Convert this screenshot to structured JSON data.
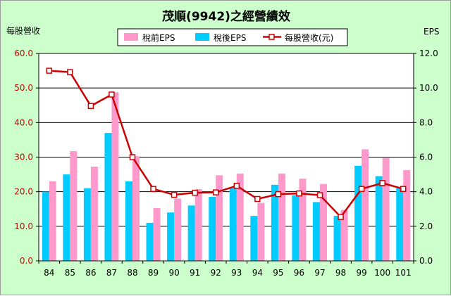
{
  "chart_data": {
    "type": "bar+line",
    "title": "茂順(9942)之經營績效",
    "ylabel_left": "每股營收",
    "ylabel_right": "EPS",
    "categories": [
      "84",
      "85",
      "86",
      "87",
      "88",
      "89",
      "90",
      "91",
      "92",
      "93",
      "94",
      "95",
      "96",
      "97",
      "98",
      "99",
      "100",
      "101"
    ],
    "ylim_left": [
      0,
      60
    ],
    "yticks_left": [
      "0.0",
      "10.0",
      "20.0",
      "30.0",
      "40.0",
      "50.0",
      "60.0"
    ],
    "ylim_right": [
      0,
      12
    ],
    "yticks_right": [
      "0.0",
      "2.0",
      "4.0",
      "6.0",
      "8.0",
      "10.0",
      "12.0"
    ],
    "grid": true,
    "legend_position": "top-center",
    "series": [
      {
        "name": "稅前EPS",
        "kind": "bar",
        "axis": "right",
        "color": "#ff99cc",
        "values": [
          4.6,
          6.35,
          5.45,
          9.75,
          6.05,
          3.05,
          3.6,
          4.15,
          4.95,
          5.05,
          3.35,
          5.05,
          4.75,
          4.45,
          2.95,
          6.45,
          5.95,
          5.25
        ]
      },
      {
        "name": "稅後EPS",
        "kind": "bar",
        "axis": "right",
        "color": "#00ccff",
        "values": [
          4.0,
          5.0,
          4.2,
          7.4,
          4.6,
          2.2,
          2.8,
          3.2,
          3.7,
          4.2,
          2.6,
          4.4,
          3.8,
          3.4,
          2.6,
          5.5,
          4.9,
          4.2
        ]
      },
      {
        "name": "每股營收(元)",
        "kind": "line",
        "axis": "left",
        "color": "#cc0000",
        "marker_fill": "#ffffff",
        "values": [
          55.0,
          54.6,
          44.8,
          48.1,
          30.0,
          20.8,
          19.1,
          19.7,
          19.8,
          21.7,
          17.9,
          19.3,
          19.5,
          19.0,
          12.7,
          20.8,
          22.5,
          20.8
        ]
      }
    ]
  }
}
